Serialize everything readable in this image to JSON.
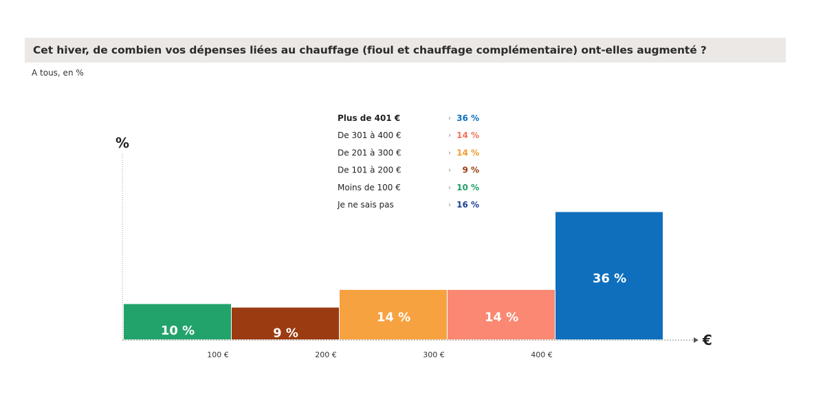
{
  "header": {
    "title": "Cet hiver, de combien vos dépenses liées au chauffage (fioul et chauffage complémentaire) ont-elles augmenté ?",
    "subtitle": "A tous, en %"
  },
  "chart_data": {
    "type": "bar",
    "ylabel": "%",
    "xlabel": "€",
    "x_ticks": [
      "100 €",
      "200 €",
      "300 €",
      "400 €"
    ],
    "ylim": [
      0,
      40
    ],
    "bars": [
      {
        "name": "Moins de 100 €",
        "value": 10,
        "label": "10 %",
        "color": "#22a36b"
      },
      {
        "name": "De 101 à 200 €",
        "value": 9,
        "label": "9 %",
        "color": "#9b3b12"
      },
      {
        "name": "De 201 à 300 €",
        "value": 14,
        "label": "14 %",
        "color": "#f7a240"
      },
      {
        "name": "De 301 à 400 €",
        "value": 14,
        "label": "14 %",
        "color": "#fa8872"
      },
      {
        "name": "Plus de 401 €",
        "value": 36,
        "label": "36 %",
        "color": "#0f6fbd"
      }
    ],
    "legend": [
      {
        "label": "Plus de 401 €",
        "value": "36 %",
        "color": "#0f6fbd",
        "bold": true
      },
      {
        "label": "De 301 à 400 €",
        "value": "14 %",
        "color": "#f4705a",
        "bold": false
      },
      {
        "label": "De 201 à 300 €",
        "value": "14 %",
        "color": "#f39a2b",
        "bold": false
      },
      {
        "label": "De 101 à 200 €",
        "value": "9 %",
        "color": "#9b3b12",
        "bold": false
      },
      {
        "label": "Moins de 100 €",
        "value": "10 %",
        "color": "#1f9e66",
        "bold": false
      },
      {
        "label": "Je ne sais pas",
        "value": "16 %",
        "color": "#1c3f95",
        "bold": false
      }
    ]
  }
}
